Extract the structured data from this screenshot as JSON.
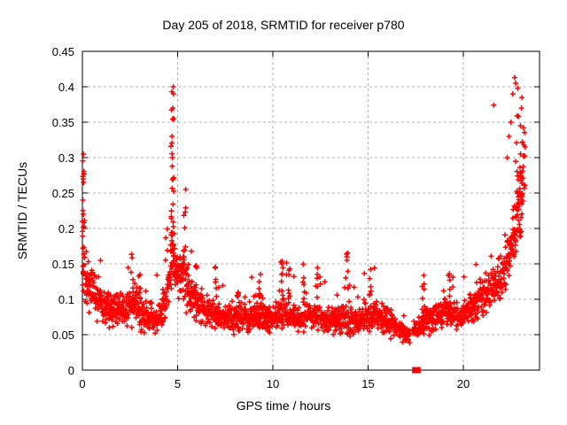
{
  "figure": {
    "background": "#ffffff"
  },
  "chart_data": {
    "type": "scatter",
    "title": "Day 205 of 2018, SRMTID for receiver p780",
    "xlabel": "GPS time / hours",
    "ylabel": "SRMTID / TECUs",
    "xlim": [
      0,
      24
    ],
    "ylim": [
      0,
      0.45
    ],
    "x_ticks": [
      {
        "v": 0,
        "label": "0"
      },
      {
        "v": 5,
        "label": "5"
      },
      {
        "v": 10,
        "label": "10"
      },
      {
        "v": 15,
        "label": "15"
      },
      {
        "v": 20,
        "label": "20"
      }
    ],
    "y_ticks": [
      {
        "v": 0,
        "label": "0"
      },
      {
        "v": 0.05,
        "label": "0.05"
      },
      {
        "v": 0.1,
        "label": "0.1"
      },
      {
        "v": 0.15,
        "label": "0.15"
      },
      {
        "v": 0.2,
        "label": "0.2"
      },
      {
        "v": 0.25,
        "label": "0.25"
      },
      {
        "v": 0.3,
        "label": "0.3"
      },
      {
        "v": 0.35,
        "label": "0.35"
      },
      {
        "v": 0.4,
        "label": "0.4"
      },
      {
        "v": 0.45,
        "label": "0.45"
      }
    ],
    "grid": "dashed-gray-at-major-ticks",
    "legend": "none",
    "marker": {
      "shape": "plus",
      "half_size": 3
    },
    "colors": {
      "marker": "#ff0000",
      "grid": "#b0b0b0",
      "axis": "#000000",
      "text": "#000000"
    },
    "zero_outliers": [
      [
        17.45,
        0
      ],
      [
        17.62,
        0
      ]
    ],
    "series": [
      {
        "name": "SRMTID",
        "notable_points": [
          [
            0.05,
            0.305
          ],
          [
            0.04,
            0.27
          ],
          [
            0.06,
            0.265
          ],
          [
            0.03,
            0.24
          ],
          [
            0.05,
            0.22
          ],
          [
            4.77,
            0.4
          ],
          [
            4.78,
            0.39
          ],
          [
            4.75,
            0.37
          ],
          [
            4.8,
            0.355
          ],
          [
            4.7,
            0.33
          ],
          [
            4.73,
            0.3
          ],
          [
            4.76,
            0.27
          ],
          [
            21.6,
            0.374
          ],
          [
            22.3,
            0.3
          ],
          [
            22.4,
            0.33
          ],
          [
            22.5,
            0.35
          ],
          [
            22.6,
            0.39
          ],
          [
            22.7,
            0.413
          ],
          [
            22.75,
            0.405
          ],
          [
            22.85,
            0.398
          ],
          [
            22.9,
            0.358
          ],
          [
            23.0,
            0.345
          ],
          [
            23.05,
            0.37
          ],
          [
            23.1,
            0.322
          ]
        ],
        "generator": {
          "seed": 205,
          "n_base": 2100,
          "t_max": 23.25,
          "v_min": 0.028,
          "v_max": 0.435,
          "gap": {
            "t_start": 17.15,
            "t_end": 17.42,
            "keep_prob": 0.25
          },
          "envelope": [
            [
              0.0,
              0.17,
              0.09
            ],
            [
              0.2,
              0.125,
              0.05
            ],
            [
              0.7,
              0.1,
              0.04
            ],
            [
              1.5,
              0.085,
              0.03
            ],
            [
              2.2,
              0.09,
              0.035
            ],
            [
              2.8,
              0.095,
              0.04
            ],
            [
              3.3,
              0.075,
              0.03
            ],
            [
              3.8,
              0.07,
              0.028
            ],
            [
              4.3,
              0.09,
              0.04
            ],
            [
              4.72,
              0.16,
              0.07
            ],
            [
              5.0,
              0.13,
              0.05
            ],
            [
              5.4,
              0.13,
              0.055
            ],
            [
              6.0,
              0.095,
              0.04
            ],
            [
              6.7,
              0.08,
              0.03
            ],
            [
              8.0,
              0.072,
              0.028
            ],
            [
              9.0,
              0.078,
              0.03
            ],
            [
              10.0,
              0.07,
              0.028
            ],
            [
              10.6,
              0.085,
              0.035
            ],
            [
              11.3,
              0.072,
              0.028
            ],
            [
              12.0,
              0.078,
              0.03
            ],
            [
              12.8,
              0.068,
              0.026
            ],
            [
              13.6,
              0.075,
              0.03
            ],
            [
              14.5,
              0.07,
              0.028
            ],
            [
              15.3,
              0.08,
              0.03
            ],
            [
              16.0,
              0.07,
              0.026
            ],
            [
              16.7,
              0.058,
              0.02
            ],
            [
              17.1,
              0.048,
              0.015
            ],
            [
              17.5,
              0.055,
              0.02
            ],
            [
              18.0,
              0.07,
              0.03
            ],
            [
              18.6,
              0.075,
              0.03
            ],
            [
              19.2,
              0.085,
              0.032
            ],
            [
              19.8,
              0.075,
              0.028
            ],
            [
              20.5,
              0.09,
              0.032
            ],
            [
              21.2,
              0.105,
              0.04
            ],
            [
              21.8,
              0.125,
              0.045
            ],
            [
              22.3,
              0.15,
              0.05
            ],
            [
              22.7,
              0.19,
              0.07
            ],
            [
              23.0,
              0.26,
              0.09
            ],
            [
              23.25,
              0.3,
              0.1
            ]
          ],
          "spike_columns": [
            {
              "t": 0.05,
              "w": 0.06,
              "n": 14,
              "vmin": 0.12,
              "vmax": 0.3
            },
            {
              "t": 2.62,
              "w": 0.05,
              "n": 6,
              "vmin": 0.1,
              "vmax": 0.165
            },
            {
              "t": 3.0,
              "w": 0.05,
              "n": 5,
              "vmin": 0.1,
              "vmax": 0.155
            },
            {
              "t": 4.72,
              "w": 0.09,
              "n": 24,
              "vmin": 0.16,
              "vmax": 0.4
            },
            {
              "t": 5.35,
              "w": 0.08,
              "n": 10,
              "vmin": 0.14,
              "vmax": 0.28
            },
            {
              "t": 5.95,
              "w": 0.05,
              "n": 6,
              "vmin": 0.1,
              "vmax": 0.16
            },
            {
              "t": 7.0,
              "w": 0.05,
              "n": 6,
              "vmin": 0.1,
              "vmax": 0.155
            },
            {
              "t": 8.15,
              "w": 0.05,
              "n": 5,
              "vmin": 0.1,
              "vmax": 0.15
            },
            {
              "t": 9.3,
              "w": 0.05,
              "n": 7,
              "vmin": 0.1,
              "vmax": 0.16
            },
            {
              "t": 10.45,
              "w": 0.05,
              "n": 7,
              "vmin": 0.1,
              "vmax": 0.165
            },
            {
              "t": 10.85,
              "w": 0.05,
              "n": 5,
              "vmin": 0.1,
              "vmax": 0.15
            },
            {
              "t": 11.6,
              "w": 0.05,
              "n": 6,
              "vmin": 0.1,
              "vmax": 0.16
            },
            {
              "t": 12.3,
              "w": 0.05,
              "n": 6,
              "vmin": 0.1,
              "vmax": 0.165
            },
            {
              "t": 13.9,
              "w": 0.05,
              "n": 7,
              "vmin": 0.11,
              "vmax": 0.17
            },
            {
              "t": 15.1,
              "w": 0.05,
              "n": 6,
              "vmin": 0.1,
              "vmax": 0.15
            },
            {
              "t": 17.9,
              "w": 0.06,
              "n": 6,
              "vmin": 0.09,
              "vmax": 0.14
            },
            {
              "t": 19.25,
              "w": 0.05,
              "n": 6,
              "vmin": 0.09,
              "vmax": 0.14
            },
            {
              "t": 22.9,
              "w": 0.22,
              "n": 22,
              "vmin": 0.16,
              "vmax": 0.4
            }
          ]
        }
      }
    ]
  }
}
